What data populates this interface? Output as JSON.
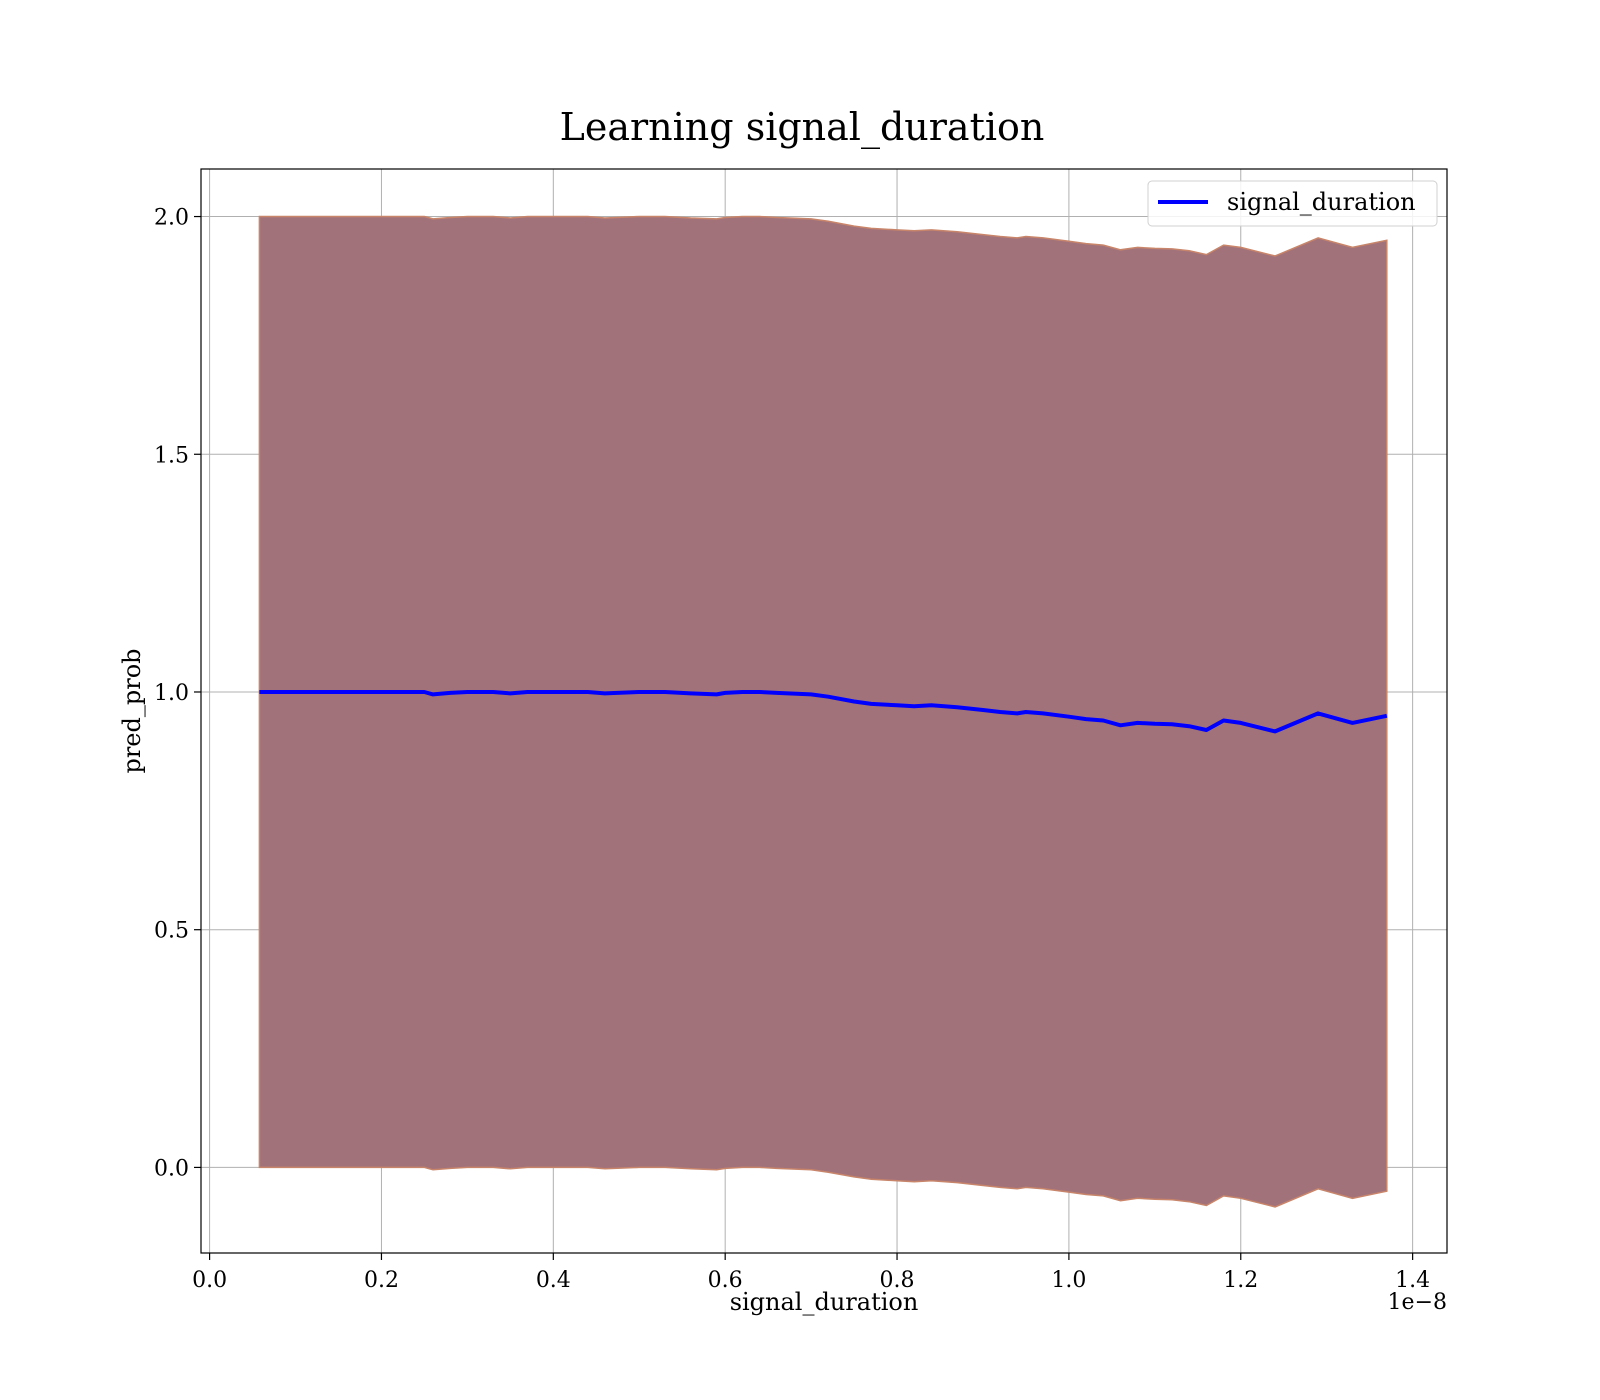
{
  "chart_data": {
    "type": "line",
    "title": "Learning signal_duration",
    "xlabel": "signal_duration",
    "ylabel": "pred_prob",
    "x_offset_text": "1e−8",
    "xlim": [
      -0.01,
      1.44
    ],
    "ylim": [
      -0.18,
      2.1
    ],
    "x_ticks": [
      0.0,
      0.2,
      0.4,
      0.6,
      0.8,
      1.0,
      1.2,
      1.4
    ],
    "x_tick_labels": [
      "0.0",
      "0.2",
      "0.4",
      "0.6",
      "0.8",
      "1.0",
      "1.2",
      "1.4"
    ],
    "y_ticks": [
      0.0,
      0.5,
      1.0,
      1.5,
      2.0
    ],
    "y_tick_labels": [
      "0.0",
      "0.5",
      "1.0",
      "1.5",
      "2.0"
    ],
    "grid": true,
    "legend_position": "top-right",
    "colors": {
      "line": "#0000ff",
      "band_fill": "#a2727b",
      "band_edge": "#c8856a",
      "grid": "#b0b0b0"
    },
    "series": [
      {
        "name": "signal_duration",
        "x": [
          0.058,
          0.07,
          0.1,
          0.13,
          0.16,
          0.2,
          0.25,
          0.26,
          0.28,
          0.3,
          0.33,
          0.35,
          0.37,
          0.4,
          0.44,
          0.46,
          0.5,
          0.53,
          0.56,
          0.59,
          0.6,
          0.62,
          0.64,
          0.66,
          0.7,
          0.72,
          0.75,
          0.77,
          0.8,
          0.82,
          0.84,
          0.87,
          0.9,
          0.92,
          0.94,
          0.95,
          0.97,
          1.0,
          1.02,
          1.04,
          1.06,
          1.08,
          1.1,
          1.12,
          1.14,
          1.16,
          1.18,
          1.2,
          1.24,
          1.29,
          1.33,
          1.37
        ],
        "y": [
          1.0,
          1.0,
          1.0,
          1.0,
          1.0,
          1.0,
          1.0,
          0.995,
          0.998,
          1.0,
          1.0,
          0.997,
          1.0,
          1.0,
          1.0,
          0.997,
          1.0,
          1.0,
          0.997,
          0.995,
          0.998,
          1.0,
          1.0,
          0.998,
          0.995,
          0.99,
          0.98,
          0.975,
          0.972,
          0.97,
          0.972,
          0.968,
          0.962,
          0.958,
          0.955,
          0.958,
          0.955,
          0.948,
          0.943,
          0.94,
          0.93,
          0.935,
          0.933,
          0.932,
          0.928,
          0.92,
          0.94,
          0.935,
          0.917,
          0.955,
          0.935,
          0.95
        ]
      }
    ],
    "band": {
      "x": [
        0.058,
        0.07,
        0.1,
        0.13,
        0.16,
        0.2,
        0.25,
        0.26,
        0.28,
        0.3,
        0.33,
        0.35,
        0.37,
        0.4,
        0.44,
        0.46,
        0.5,
        0.53,
        0.56,
        0.59,
        0.6,
        0.62,
        0.64,
        0.66,
        0.7,
        0.72,
        0.75,
        0.77,
        0.8,
        0.82,
        0.84,
        0.87,
        0.9,
        0.92,
        0.94,
        0.95,
        0.97,
        1.0,
        1.02,
        1.04,
        1.06,
        1.08,
        1.1,
        1.12,
        1.14,
        1.16,
        1.18,
        1.2,
        1.24,
        1.29,
        1.33,
        1.37
      ],
      "upper": [
        2.0,
        2.0,
        2.0,
        2.0,
        2.0,
        2.0,
        2.0,
        1.995,
        1.998,
        2.0,
        2.0,
        1.997,
        2.0,
        2.0,
        2.0,
        1.997,
        2.0,
        2.0,
        1.997,
        1.995,
        1.998,
        2.0,
        2.0,
        1.998,
        1.995,
        1.99,
        1.98,
        1.975,
        1.972,
        1.97,
        1.972,
        1.968,
        1.962,
        1.958,
        1.955,
        1.958,
        1.955,
        1.948,
        1.943,
        1.94,
        1.93,
        1.935,
        1.933,
        1.932,
        1.928,
        1.92,
        1.94,
        1.935,
        1.917,
        1.955,
        1.935,
        1.95
      ],
      "lower": [
        0.0,
        0.0,
        0.0,
        0.0,
        0.0,
        0.0,
        0.0,
        -0.005,
        -0.002,
        0.0,
        0.0,
        -0.003,
        0.0,
        0.0,
        0.0,
        -0.003,
        0.0,
        0.0,
        -0.003,
        -0.005,
        -0.002,
        0.0,
        0.0,
        -0.002,
        -0.005,
        -0.01,
        -0.02,
        -0.025,
        -0.028,
        -0.03,
        -0.028,
        -0.032,
        -0.038,
        -0.042,
        -0.045,
        -0.042,
        -0.045,
        -0.052,
        -0.057,
        -0.06,
        -0.07,
        -0.065,
        -0.067,
        -0.068,
        -0.072,
        -0.08,
        -0.06,
        -0.065,
        -0.083,
        -0.045,
        -0.065,
        -0.05
      ]
    }
  }
}
